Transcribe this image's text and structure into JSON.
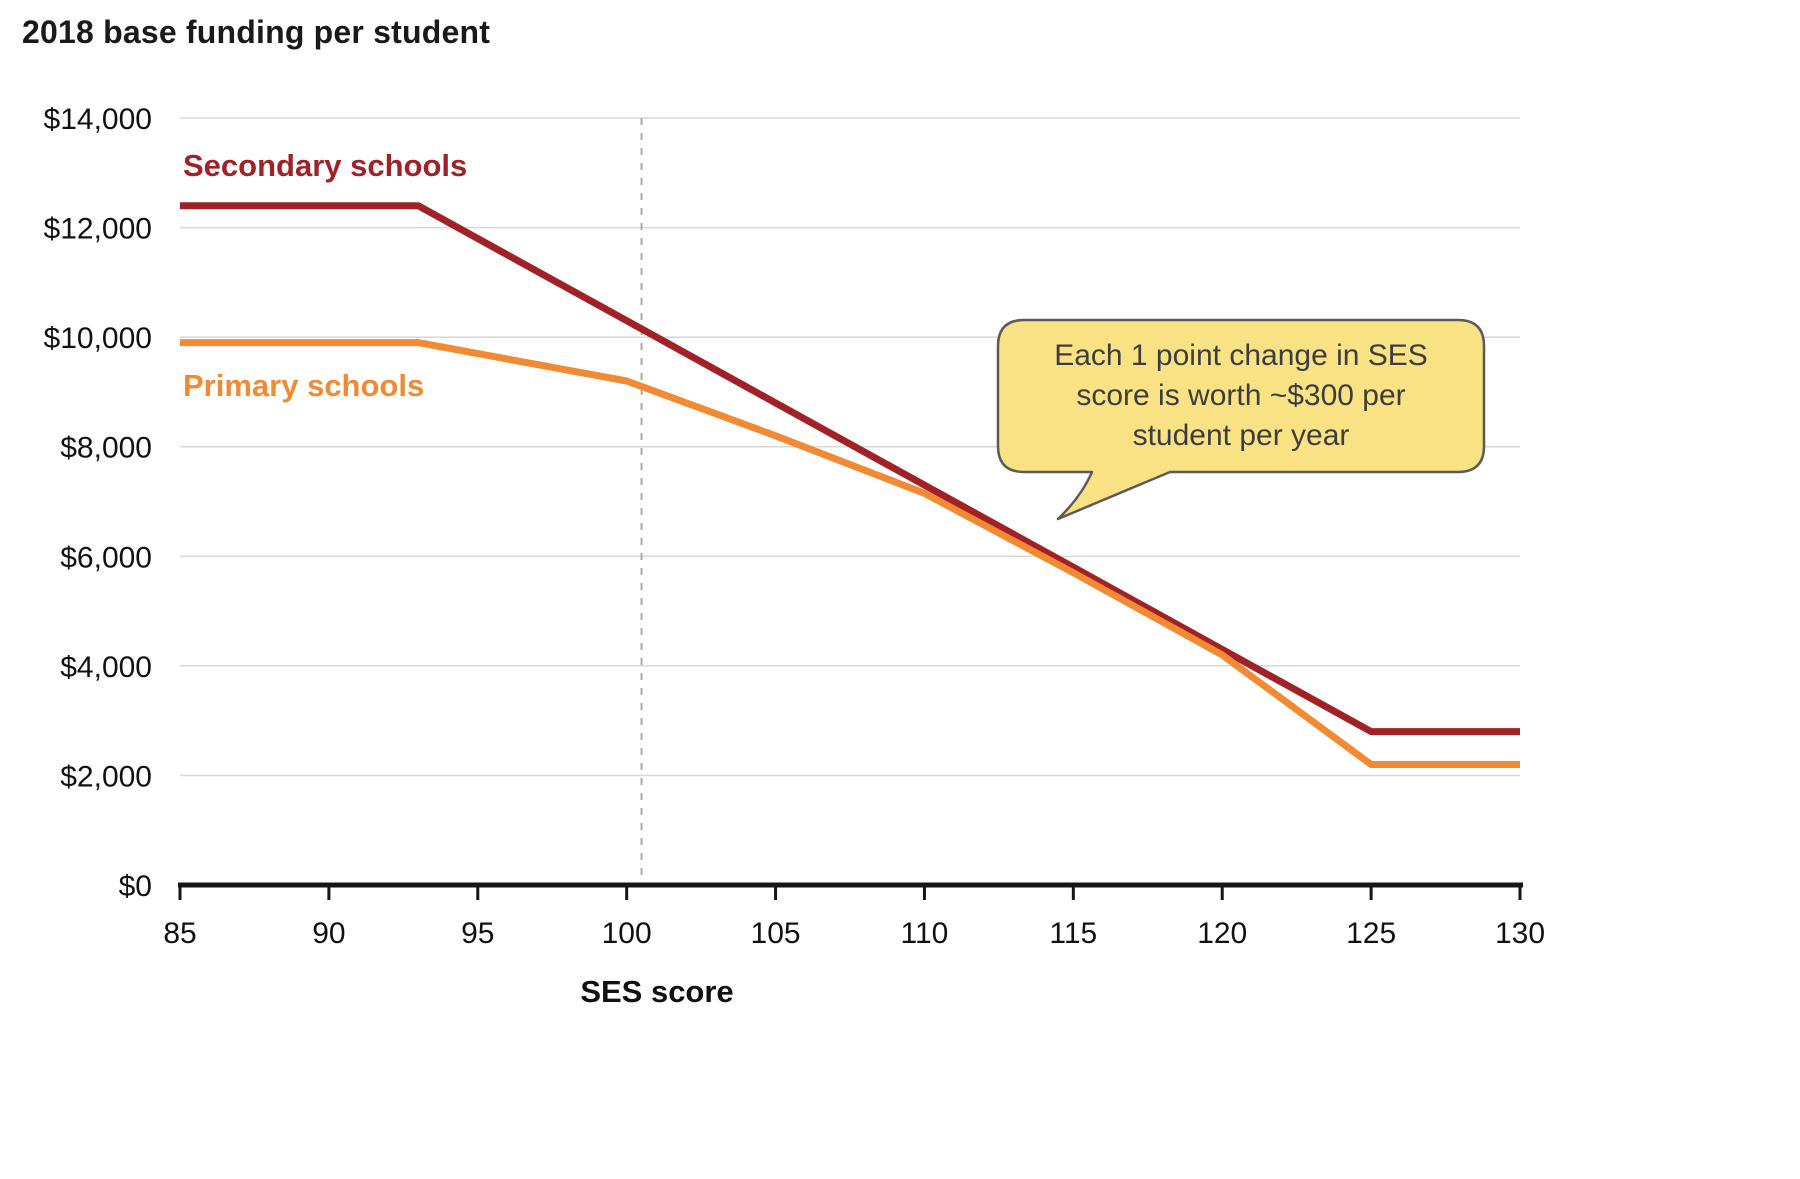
{
  "chart_data": {
    "type": "line",
    "title": "2018 base funding per student",
    "xlabel": "SES score",
    "ylabel": "2018 base funding per student",
    "xlim": [
      85,
      130
    ],
    "ylim": [
      0,
      14000
    ],
    "x_ticks": [
      85,
      90,
      95,
      100,
      105,
      110,
      115,
      120,
      125,
      130
    ],
    "x_tick_labels": [
      "85",
      "90",
      "95",
      "100",
      "105",
      "110",
      "115",
      "120",
      "125",
      "130"
    ],
    "y_ticks": [
      0,
      2000,
      4000,
      6000,
      8000,
      10000,
      12000,
      14000
    ],
    "y_tick_labels": [
      "$0",
      "$2,000",
      "$4,000",
      "$6,000",
      "$8,000",
      "$10,000",
      "$12,000",
      "$14,000"
    ],
    "grid": "horizontal",
    "legend": "inline-labels",
    "dashed_vline_x": 100.5,
    "series": [
      {
        "name": "Secondary schools",
        "color": "#A02226",
        "points": [
          [
            85,
            12400
          ],
          [
            93,
            12400
          ],
          [
            100,
            10300
          ],
          [
            105,
            8800
          ],
          [
            110,
            7300
          ],
          [
            115,
            5800
          ],
          [
            120,
            4300
          ],
          [
            125,
            2800
          ],
          [
            130,
            2800
          ]
        ]
      },
      {
        "name": "Primary schools",
        "color": "#F18A33",
        "points": [
          [
            85,
            9900
          ],
          [
            93,
            9900
          ],
          [
            100,
            9200
          ],
          [
            105,
            8200
          ],
          [
            110,
            7150
          ],
          [
            115,
            5700
          ],
          [
            120,
            4200
          ],
          [
            125,
            2200
          ],
          [
            130,
            2200
          ]
        ]
      }
    ]
  },
  "callout": {
    "text": "Each 1 point change in SES score is worth ~$300 per student per year",
    "lines": [
      "Each 1 point change in SES",
      "score is worth ~$300 per",
      "student per year"
    ],
    "fill": "#F8E284",
    "border": "#5A5A5A"
  }
}
